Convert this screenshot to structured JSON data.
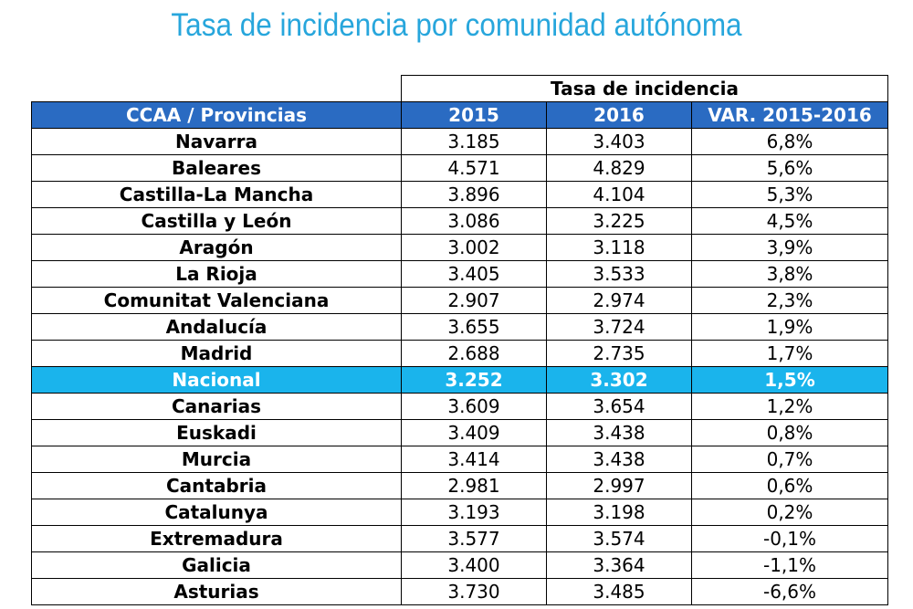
{
  "title": "Tasa de incidencia por comunidad autónoma",
  "table": {
    "group_header": "Tasa de incidencia",
    "columns": [
      "CCAA / Provincias",
      "2015",
      "2016",
      "VAR. 2015-2016"
    ],
    "rows": [
      {
        "name": "Navarra",
        "y2015": "3.185",
        "y2016": "3.403",
        "var": "6,8%"
      },
      {
        "name": "Baleares",
        "y2015": "4.571",
        "y2016": "4.829",
        "var": "5,6%"
      },
      {
        "name": "Castilla-La Mancha",
        "y2015": "3.896",
        "y2016": "4.104",
        "var": "5,3%"
      },
      {
        "name": "Castilla y León",
        "y2015": "3.086",
        "y2016": "3.225",
        "var": "4,5%"
      },
      {
        "name": "Aragón",
        "y2015": "3.002",
        "y2016": "3.118",
        "var": "3,9%"
      },
      {
        "name": "La Rioja",
        "y2015": "3.405",
        "y2016": "3.533",
        "var": "3,8%"
      },
      {
        "name": "Comunitat Valenciana",
        "y2015": "2.907",
        "y2016": "2.974",
        "var": "2,3%"
      },
      {
        "name": "Andalucía",
        "y2015": "3.655",
        "y2016": "3.724",
        "var": "1,9%"
      },
      {
        "name": "Madrid",
        "y2015": "2.688",
        "y2016": "2.735",
        "var": "1,7%"
      },
      {
        "name": "Nacional",
        "y2015": "3.252",
        "y2016": "3.302",
        "var": "1,5%",
        "highlight": true
      },
      {
        "name": "Canarias",
        "y2015": "3.609",
        "y2016": "3.654",
        "var": "1,2%"
      },
      {
        "name": "Euskadi",
        "y2015": "3.409",
        "y2016": "3.438",
        "var": "0,8%"
      },
      {
        "name": "Murcia",
        "y2015": "3.414",
        "y2016": "3.438",
        "var": "0,7%"
      },
      {
        "name": "Cantabria",
        "y2015": "2.981",
        "y2016": "2.997",
        "var": "0,6%"
      },
      {
        "name": "Catalunya",
        "y2015": "3.193",
        "y2016": "3.198",
        "var": "0,2%"
      },
      {
        "name": "Extremadura",
        "y2015": "3.577",
        "y2016": "3.574",
        "var": "-0,1%"
      },
      {
        "name": "Galicia",
        "y2015": "3.400",
        "y2016": "3.364",
        "var": "-1,1%"
      },
      {
        "name": "Asturias",
        "y2015": "3.730",
        "y2016": "3.485",
        "var": "-6,6%"
      }
    ]
  },
  "colors": {
    "title": "#27a6dc",
    "header_bg": "#2a6bc2",
    "highlight_bg": "#1ab4ec"
  }
}
